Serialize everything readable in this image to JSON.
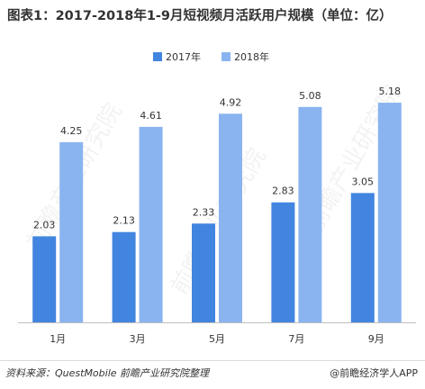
{
  "title": "图表1：2017-2018年1-9月短视频月活跃用户规模（单位：亿）",
  "source": "资料来源：QuestMobile  前瞻产业研究院整理",
  "credit": "@前瞻经济学人APP",
  "watermark": "前瞻产业研究院",
  "colors": {
    "series_2017": "#4285e0",
    "series_2018": "#8ab4f0",
    "axis": "#bfbfbf"
  },
  "chart_data": {
    "type": "bar",
    "categories": [
      "1月",
      "3月",
      "5月",
      "7月",
      "9月"
    ],
    "series": [
      {
        "name": "2017年",
        "values": [
          2.03,
          2.13,
          2.33,
          2.83,
          3.05
        ]
      },
      {
        "name": "2018年",
        "values": [
          4.25,
          4.61,
          4.92,
          5.08,
          5.18
        ]
      }
    ],
    "ylim": [
      0,
      5.5
    ],
    "grid": false,
    "legend_position": "top-center",
    "data_labels": true
  }
}
